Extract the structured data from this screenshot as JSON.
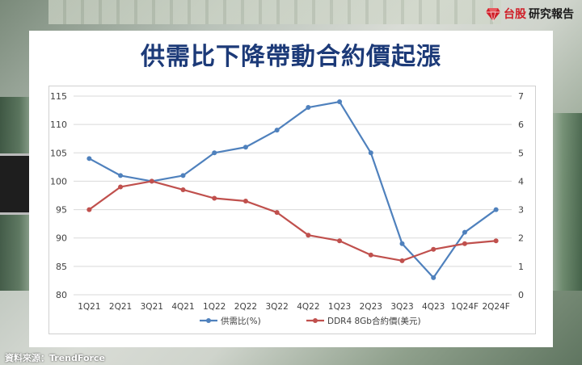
{
  "brand": {
    "name_red": "台股",
    "name_dark": "研究報告"
  },
  "source": "資料來源：TrendForce",
  "chart_data": {
    "type": "line",
    "title": "供需比下降帶動合約價起漲",
    "categories": [
      "1Q21",
      "2Q21",
      "3Q21",
      "4Q21",
      "1Q22",
      "2Q22",
      "3Q22",
      "4Q22",
      "1Q23",
      "2Q23",
      "3Q23",
      "4Q23",
      "1Q24F",
      "2Q24F"
    ],
    "y_left": {
      "min": 80,
      "max": 115,
      "ticks": [
        80,
        85,
        90,
        95,
        100,
        105,
        110,
        115
      ]
    },
    "y_right": {
      "min": 0,
      "max": 7,
      "ticks": [
        0,
        1,
        2,
        3,
        4,
        5,
        6,
        7
      ]
    },
    "grid": true,
    "legend_position": "bottom",
    "series": [
      {
        "name": "供需比(%)",
        "axis": "left",
        "color": "#4f81bd",
        "values": [
          104,
          101,
          100,
          101,
          105,
          106,
          109,
          113,
          114,
          105,
          89,
          83,
          91,
          95
        ]
      },
      {
        "name": "DDR4 8Gb合約價(美元)",
        "axis": "right",
        "color": "#c0504d",
        "values": [
          3.0,
          3.8,
          4.0,
          3.7,
          3.4,
          3.3,
          2.9,
          2.1,
          1.9,
          1.4,
          1.2,
          1.6,
          1.8,
          1.9
        ]
      }
    ]
  }
}
